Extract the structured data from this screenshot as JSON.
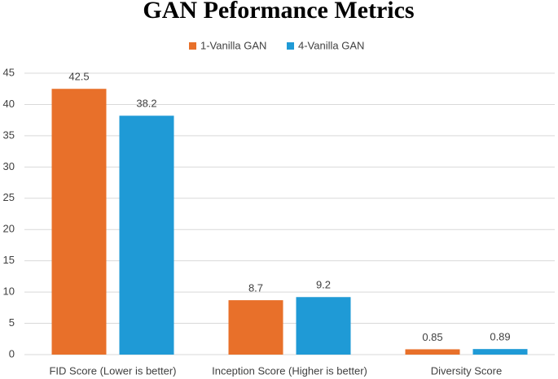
{
  "chart_data": {
    "type": "bar",
    "title": "GAN Peformance Metrics",
    "categories": [
      "FID Score (Lower is better)",
      "Inception Score (Higher is better)",
      "Diversity Score"
    ],
    "series": [
      {
        "name": "1-Vanilla GAN",
        "color": "#e8702a",
        "values": [
          42.5,
          8.7,
          0.85
        ]
      },
      {
        "name": "4-Vanilla GAN",
        "color": "#1f9ad6",
        "values": [
          38.2,
          9.2,
          0.89
        ]
      }
    ],
    "ylim": [
      0,
      45
    ],
    "yticks": [
      0,
      5,
      10,
      15,
      20,
      25,
      30,
      35,
      40,
      45
    ],
    "grid": true,
    "legend": "top"
  }
}
